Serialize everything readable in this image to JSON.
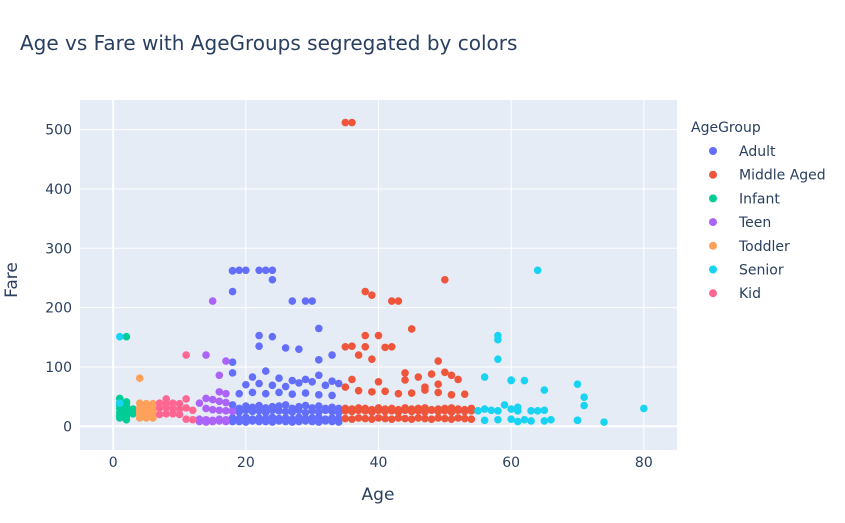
{
  "chart_data": {
    "type": "scatter",
    "title": "Age vs Fare with AgeGroups segregated by colors",
    "xlabel": "Age",
    "ylabel": "Fare",
    "xlim": [
      -5,
      85
    ],
    "ylim": [
      -40,
      550
    ],
    "x_ticks": [
      "0",
      "20",
      "40",
      "60",
      "80"
    ],
    "y_ticks": [
      "0",
      "100",
      "200",
      "300",
      "400",
      "500"
    ],
    "x_tick_values": [
      0,
      20,
      40,
      60,
      80
    ],
    "y_tick_values": [
      0,
      100,
      200,
      300,
      400,
      500
    ],
    "legend_title": "AgeGroup",
    "legend_position": "right",
    "grid": true,
    "series": [
      {
        "name": "Adult",
        "color": "#636efa",
        "x": [
          18,
          18,
          19,
          20,
          22,
          23,
          24,
          18,
          24,
          27,
          29,
          30,
          31,
          22,
          22,
          24,
          26,
          28,
          31,
          33,
          18,
          18,
          21,
          23,
          25,
          27,
          29,
          31,
          33,
          20,
          22,
          24,
          26,
          28,
          30,
          32,
          34,
          19,
          21,
          23,
          25,
          27,
          29,
          31,
          33,
          18,
          19,
          20,
          21,
          22,
          23,
          24,
          25,
          26,
          27,
          28,
          29,
          30,
          31,
          32,
          33,
          34,
          18,
          19,
          20,
          21,
          22,
          23,
          24,
          25,
          26,
          27,
          28,
          29,
          30,
          31,
          32,
          33,
          34,
          18,
          19,
          20,
          21,
          22,
          23,
          24,
          25,
          26,
          27,
          28,
          29,
          30,
          31,
          32,
          33,
          34,
          18,
          19,
          20,
          21,
          22,
          23,
          24,
          25,
          26,
          27,
          28,
          29,
          30,
          31,
          32,
          33,
          34
        ],
        "y": [
          262,
          262,
          263,
          263,
          263,
          263,
          263,
          227,
          247,
          211,
          211,
          211,
          165,
          153,
          135,
          151,
          132,
          130,
          112,
          120,
          108,
          90,
          83,
          93,
          81,
          77,
          79,
          86,
          76,
          70,
          72,
          69,
          67,
          73,
          75,
          69,
          72,
          55,
          57,
          55,
          57,
          54,
          56,
          53,
          52,
          36,
          30,
          34,
          32,
          35,
          31,
          33,
          34,
          36,
          30,
          33,
          35,
          31,
          34,
          30,
          32,
          30,
          26,
          24,
          27,
          25,
          26,
          23,
          27,
          26,
          25,
          24,
          27,
          23,
          26,
          24,
          27,
          25,
          23,
          14,
          13,
          15,
          12,
          14,
          13,
          15,
          13,
          14,
          12,
          15,
          13,
          14,
          15,
          12,
          14,
          13,
          8,
          8,
          7,
          9,
          8,
          8,
          7,
          9,
          8,
          7,
          8,
          9,
          8,
          7,
          9,
          8,
          7
        ]
      },
      {
        "name": "Middle Aged",
        "color": "#ef553b",
        "x": [
          35,
          36,
          50,
          38,
          39,
          43,
          42,
          45,
          35,
          36,
          37,
          38,
          40,
          41,
          49,
          38,
          39,
          42,
          44,
          46,
          48,
          50,
          51,
          36,
          40,
          44,
          47,
          49,
          52,
          35,
          37,
          39,
          41,
          43,
          45,
          47,
          49,
          51,
          53,
          35,
          36,
          37,
          38,
          39,
          40,
          41,
          42,
          43,
          44,
          45,
          46,
          47,
          48,
          49,
          50,
          51,
          52,
          53,
          54,
          35,
          36,
          37,
          38,
          39,
          40,
          41,
          42,
          43,
          44,
          45,
          46,
          47,
          48,
          49,
          50,
          51,
          52,
          53,
          54,
          35,
          36,
          37,
          38,
          39,
          40,
          41,
          42,
          43,
          44,
          45,
          46,
          47,
          48,
          49,
          50,
          51,
          52,
          53,
          54
        ],
        "y": [
          512,
          512,
          247,
          227,
          221,
          211,
          211,
          164,
          134,
          135,
          120,
          153,
          153,
          133,
          110,
          134,
          113,
          134,
          90,
          83,
          88,
          91,
          86,
          79,
          75,
          78,
          66,
          71,
          79,
          66,
          60,
          58,
          59,
          55,
          56,
          61,
          57,
          53,
          54,
          30,
          29,
          31,
          30,
          28,
          31,
          29,
          30,
          28,
          31,
          29,
          30,
          31,
          28,
          29,
          30,
          31,
          29,
          28,
          30,
          26,
          25,
          27,
          26,
          24,
          27,
          25,
          26,
          24,
          27,
          25,
          26,
          24,
          27,
          25,
          26,
          24,
          27,
          25,
          26,
          13,
          12,
          14,
          13,
          12,
          14,
          13,
          12,
          14,
          13,
          12,
          14,
          13,
          12,
          14,
          13,
          12,
          14,
          13,
          12
        ]
      },
      {
        "name": "Infant",
        "color": "#00cc96",
        "x": [
          2,
          1,
          1,
          2,
          1,
          2,
          1,
          2,
          1,
          2,
          1,
          2,
          1,
          2,
          1,
          2,
          3,
          3
        ],
        "y": [
          151,
          47,
          40,
          41,
          36,
          39,
          35,
          34,
          30,
          27,
          23,
          20,
          18,
          15,
          14,
          11,
          29,
          21
        ]
      },
      {
        "name": "Teen",
        "color": "#ab63fa",
        "x": [
          15,
          14,
          17,
          16,
          16,
          17,
          14,
          15,
          16,
          17,
          13,
          14,
          15,
          16,
          17,
          18,
          13,
          14,
          15,
          16,
          17,
          13,
          14,
          15,
          16,
          17
        ],
        "y": [
          211,
          120,
          110,
          86,
          58,
          55,
          47,
          45,
          42,
          40,
          39,
          30,
          28,
          27,
          26,
          25,
          12,
          11,
          10,
          12,
          11,
          8,
          7,
          8,
          9,
          8
        ]
      },
      {
        "name": "Toddler",
        "color": "#ffa15a",
        "x": [
          4,
          4,
          5,
          6,
          4,
          5,
          6,
          4,
          5,
          6,
          4,
          5,
          6,
          4,
          5,
          6
        ],
        "y": [
          81,
          39,
          38,
          38,
          31,
          31,
          31,
          27,
          27,
          27,
          21,
          21,
          21,
          14,
          14,
          14
        ]
      },
      {
        "name": "Kid",
        "color": "#ff6692",
        "x": [
          11,
          8,
          7,
          8,
          9,
          10,
          11,
          7,
          8,
          9,
          10,
          11,
          12,
          7,
          8,
          9,
          10,
          11,
          12
        ],
        "y": [
          120,
          46,
          39,
          38,
          39,
          38,
          46,
          31,
          31,
          30,
          29,
          31,
          27,
          20,
          21,
          21,
          20,
          12,
          11
        ]
      },
      {
        "name": "Senior",
        "color": "#19d3f3",
        "x": [
          1,
          1,
          64,
          58,
          58,
          58,
          56,
          60,
          60,
          65,
          70,
          70,
          71,
          57,
          58,
          59,
          61,
          63,
          62,
          56,
          60,
          61,
          64,
          65,
          55,
          62,
          66,
          70,
          71,
          74,
          80,
          56,
          58,
          60,
          61,
          63,
          65
        ],
        "y": [
          151,
          39,
          263,
          153,
          146,
          113,
          83,
          78,
          77,
          61,
          71,
          10,
          49,
          27,
          26,
          36,
          32,
          26,
          77,
          29,
          29,
          26,
          26,
          27,
          26,
          11,
          11,
          10,
          35,
          7,
          30,
          10,
          11,
          12,
          8,
          9,
          9
        ]
      }
    ]
  }
}
